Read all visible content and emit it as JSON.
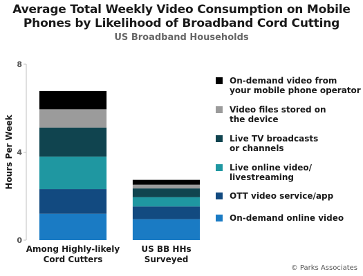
{
  "title": "Average Total Weekly Video Consumption on Mobile Phones by  Likelihood of Broadband Cord Cutting",
  "subtitle": "US Broadband Households",
  "credit": "© Parks Associates",
  "chart_data": {
    "type": "bar",
    "stacked": true,
    "ylabel": "Hours Per Week",
    "ylim": [
      0,
      8
    ],
    "yticks": [
      0,
      4,
      8
    ],
    "grid": false,
    "legend": "right",
    "categories": [
      "Among Highly-likely\nCord Cutters",
      "US BB HHs\nSurveyed"
    ],
    "series": [
      {
        "name": "On-demand online video",
        "color": "#1a7bc4",
        "values": [
          1.2,
          0.95
        ]
      },
      {
        "name": "OTT video service/app",
        "color": "#124a80",
        "values": [
          1.12,
          0.58
        ]
      },
      {
        "name": "Live online video/\nlivestreaming",
        "color": "#1f97a1",
        "values": [
          1.48,
          0.42
        ]
      },
      {
        "name": "Live TV broadcasts\nor channels",
        "color": "#10444f",
        "values": [
          1.32,
          0.4
        ]
      },
      {
        "name": "Video files stored on\nthe device",
        "color": "#9b9b9b",
        "values": [
          0.83,
          0.17
        ]
      },
      {
        "name": "On-demand video from\nyour mobile phone operator",
        "color": "#000000",
        "values": [
          0.83,
          0.22
        ]
      }
    ]
  }
}
